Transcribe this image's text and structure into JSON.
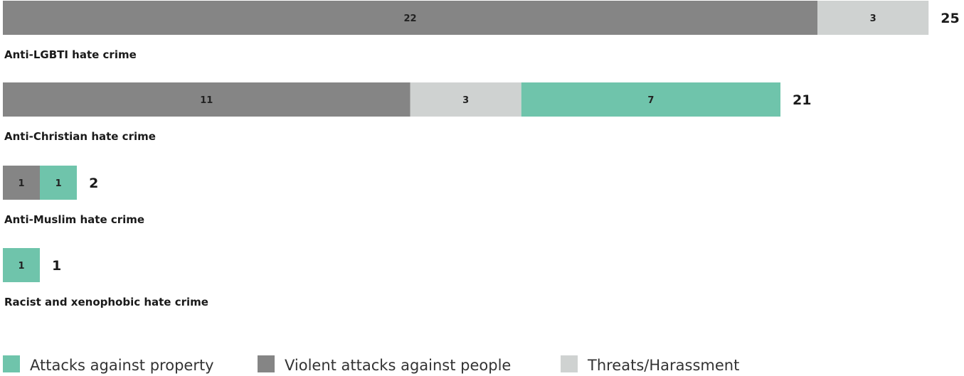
{
  "chart_data": {
    "type": "bar",
    "orientation": "horizontal",
    "stacked": true,
    "categories": [
      "Anti-LGBTI hate crime",
      "Anti-Christian hate crime",
      "Anti-Muslim hate crime",
      "Racist and xenophobic hate crime"
    ],
    "series": [
      {
        "name": "Violent attacks against people",
        "color": "#858585",
        "values": [
          22,
          11,
          1,
          0
        ]
      },
      {
        "name": "Threats/Harassment",
        "color": "#cfd2d1",
        "values": [
          3,
          3,
          0,
          0
        ]
      },
      {
        "name": "Attacks against property",
        "color": "#6fc4ab",
        "values": [
          0,
          7,
          1,
          1
        ]
      }
    ],
    "totals": [
      25,
      21,
      2,
      1
    ],
    "legend": {
      "position": "bottom",
      "order": [
        "Attacks against property",
        "Violent attacks against people",
        "Threats/Harassment"
      ]
    },
    "grid": false
  }
}
